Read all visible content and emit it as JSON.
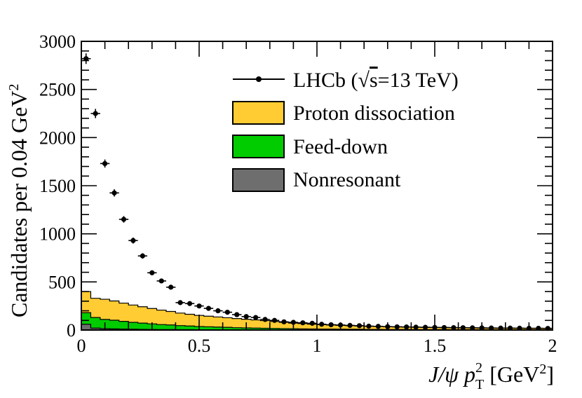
{
  "chart_data": {
    "type": "histogram-stack-with-data",
    "xlabel": {
      "pre": "J/ψ  p",
      "sup": "2",
      "sub": "T",
      "post": " [GeV",
      "post_sup": "2",
      "end": "]"
    },
    "ylabel": {
      "main": "Candidates per 0.04 GeV",
      "sup": "2"
    },
    "xlim": [
      0,
      2
    ],
    "ylim": [
      0,
      3000
    ],
    "x_ticks": [
      {
        "value": 0,
        "label": "0"
      },
      {
        "value": 0.5,
        "label": "0.5"
      },
      {
        "value": 1,
        "label": "1"
      },
      {
        "value": 1.5,
        "label": "1.5"
      },
      {
        "value": 2,
        "label": "2"
      }
    ],
    "y_ticks": [
      {
        "value": 0,
        "label": "0"
      },
      {
        "value": 500,
        "label": "500"
      },
      {
        "value": 1000,
        "label": "1000"
      },
      {
        "value": 1500,
        "label": "1500"
      },
      {
        "value": 2000,
        "label": "2000"
      },
      {
        "value": 2500,
        "label": "2500"
      },
      {
        "value": 3000,
        "label": "3000"
      }
    ],
    "bin_width": 0.04,
    "legend": [
      {
        "name": "LHCb",
        "label_pre": "LHCb (",
        "label_sqrt": "√",
        "label_s": "s",
        "label_post": "=13 TeV)",
        "kind": "data"
      },
      {
        "name": "Proton dissociation",
        "label": "Proton dissociation",
        "kind": "fill",
        "color": "#ffcc33"
      },
      {
        "name": "Feed-down",
        "label": "Feed-down",
        "kind": "fill",
        "color": "#00cc00"
      },
      {
        "name": "Nonresonant",
        "label": "Nonresonant",
        "kind": "fill",
        "color": "#6e6e6e"
      }
    ],
    "data_points": {
      "x": [
        0.02,
        0.06,
        0.1,
        0.14,
        0.18,
        0.22,
        0.26,
        0.3,
        0.34,
        0.38,
        0.42,
        0.46,
        0.5,
        0.54,
        0.58,
        0.62,
        0.66,
        0.7,
        0.74,
        0.78,
        0.82,
        0.86,
        0.9,
        0.94,
        0.98,
        1.02,
        1.06,
        1.1,
        1.14,
        1.18,
        1.22,
        1.26,
        1.3,
        1.34,
        1.38,
        1.42,
        1.46,
        1.5,
        1.54,
        1.58,
        1.62,
        1.66,
        1.7,
        1.74,
        1.78,
        1.82,
        1.86,
        1.9,
        1.94,
        1.98
      ],
      "y": [
        2820,
        2250,
        1730,
        1425,
        1150,
        930,
        770,
        595,
        510,
        445,
        285,
        275,
        250,
        225,
        200,
        185,
        160,
        140,
        130,
        110,
        100,
        85,
        80,
        75,
        70,
        60,
        55,
        52,
        48,
        45,
        40,
        38,
        35,
        33,
        32,
        30,
        28,
        27,
        26,
        25,
        24,
        23,
        22,
        21,
        20,
        20,
        19,
        18,
        18,
        17
      ],
      "yerr": [
        55,
        48,
        42,
        38,
        34,
        31,
        28,
        24,
        23,
        21,
        17,
        17,
        16,
        15,
        14,
        14,
        13,
        12,
        11,
        11,
        10,
        9,
        9,
        9,
        8,
        8,
        7,
        7,
        7,
        7,
        6,
        6,
        6,
        6,
        6,
        5,
        5,
        5,
        5,
        5,
        5,
        5,
        5,
        5,
        4,
        4,
        4,
        4,
        4,
        4
      ]
    },
    "stack": {
      "Nonresonant": [
        60,
        20,
        15,
        12,
        10,
        8,
        7,
        6,
        5,
        5,
        4,
        4,
        3,
        3,
        3,
        3,
        2,
        2,
        2,
        2,
        2,
        2,
        2,
        1,
        1,
        1,
        1,
        1,
        1,
        1,
        1,
        1,
        1,
        1,
        1,
        1,
        1,
        1,
        1,
        1,
        1,
        1,
        1,
        1,
        1,
        1,
        1,
        1,
        1,
        1
      ],
      "Feed-down": [
        120,
        110,
        95,
        90,
        80,
        72,
        65,
        58,
        52,
        48,
        42,
        38,
        34,
        31,
        28,
        25,
        22,
        20,
        18,
        16,
        15,
        13,
        12,
        11,
        10,
        9,
        9,
        8,
        7,
        7,
        6,
        6,
        5,
        5,
        5,
        4,
        4,
        4,
        4,
        3,
        3,
        3,
        3,
        3,
        3,
        3,
        2,
        2,
        2,
        2
      ],
      "Proton dissociation": [
        220,
        200,
        210,
        200,
        190,
        180,
        170,
        160,
        150,
        140,
        130,
        122,
        115,
        110,
        105,
        100,
        95,
        90,
        85,
        80,
        72,
        65,
        58,
        55,
        50,
        46,
        43,
        40,
        37,
        35,
        33,
        31,
        29,
        28,
        26,
        25,
        24,
        23,
        22,
        21,
        20,
        19,
        18,
        17,
        16,
        15,
        15,
        14,
        14,
        13
      ]
    }
  }
}
